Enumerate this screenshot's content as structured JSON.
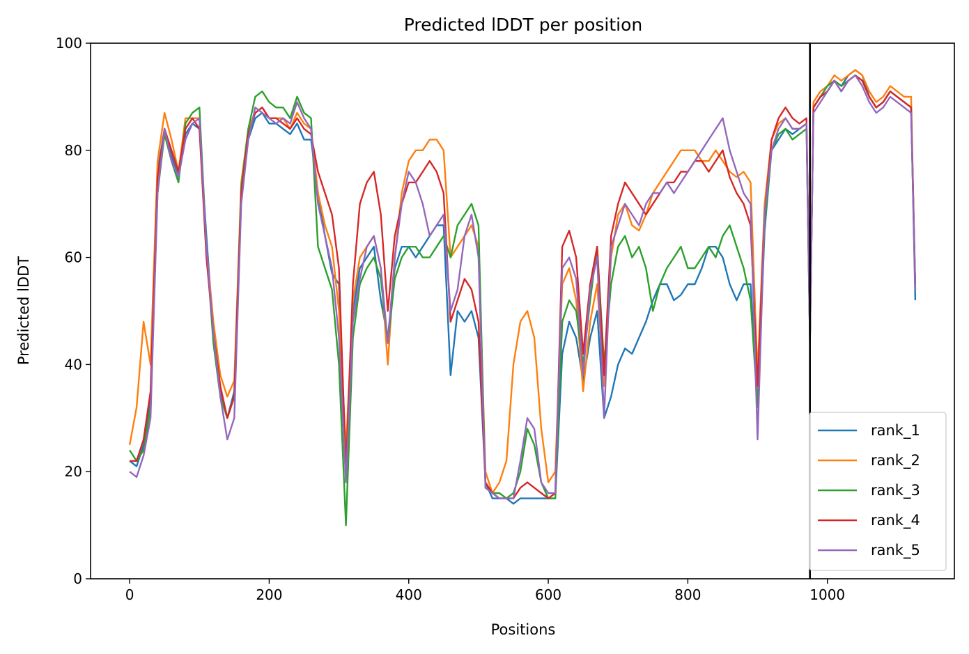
{
  "chart_data": {
    "type": "line",
    "title": "Predicted lDDT per position",
    "xlabel": "Positions",
    "ylabel": "Predicted lDDT",
    "xlim": [
      -56,
      1182
    ],
    "ylim": [
      0,
      100
    ],
    "xticks": [
      0,
      200,
      400,
      600,
      800,
      1000
    ],
    "yticks": [
      0,
      20,
      40,
      60,
      80,
      100
    ],
    "grid": false,
    "legend_position": "lower right",
    "vline": {
      "x": 975,
      "color": "#000000"
    },
    "series": [
      {
        "name": "rank_1",
        "color": "#1f77b4",
        "x": [
          0,
          10,
          20,
          30,
          40,
          50,
          60,
          70,
          80,
          90,
          100,
          110,
          120,
          130,
          140,
          150,
          160,
          170,
          180,
          190,
          200,
          210,
          220,
          230,
          240,
          250,
          260,
          270,
          280,
          290,
          300,
          310,
          320,
          330,
          340,
          350,
          360,
          370,
          380,
          390,
          400,
          410,
          420,
          430,
          440,
          450,
          460,
          470,
          480,
          490,
          500,
          510,
          520,
          530,
          540,
          550,
          560,
          570,
          580,
          590,
          600,
          610,
          620,
          630,
          640,
          650,
          660,
          670,
          680,
          690,
          700,
          710,
          720,
          730,
          740,
          750,
          760,
          770,
          780,
          790,
          800,
          810,
          820,
          830,
          840,
          850,
          860,
          870,
          880,
          890,
          900,
          910,
          920,
          930,
          940,
          950,
          960,
          970,
          975,
          980,
          990,
          1000,
          1010,
          1020,
          1030,
          1040,
          1050,
          1060,
          1070,
          1080,
          1090,
          1100,
          1110,
          1120,
          1126
        ],
        "y": [
          22,
          21,
          25,
          34,
          76,
          84,
          79,
          75,
          83,
          85,
          84,
          64,
          46,
          35,
          30,
          35,
          72,
          82,
          86,
          87,
          85,
          85,
          84,
          83,
          85,
          82,
          82,
          72,
          64,
          57,
          55,
          22,
          50,
          58,
          60,
          62,
          52,
          45,
          58,
          62,
          62,
          60,
          62,
          64,
          66,
          66,
          38,
          50,
          48,
          50,
          45,
          18,
          15,
          15,
          15,
          14,
          15,
          15,
          15,
          15,
          15,
          15,
          42,
          48,
          45,
          37,
          45,
          50,
          30,
          34,
          40,
          43,
          42,
          45,
          48,
          52,
          55,
          55,
          52,
          53,
          55,
          55,
          58,
          62,
          62,
          60,
          55,
          52,
          55,
          55,
          32,
          65,
          80,
          82,
          84,
          83,
          84,
          85,
          44,
          88,
          90,
          91,
          93,
          92,
          94,
          95,
          94,
          90,
          88,
          89,
          91,
          90,
          89,
          88,
          52
        ]
      },
      {
        "name": "rank_2",
        "color": "#ff7f0e",
        "x": [
          0,
          10,
          20,
          30,
          40,
          50,
          60,
          70,
          80,
          90,
          100,
          110,
          120,
          130,
          140,
          150,
          160,
          170,
          180,
          190,
          200,
          210,
          220,
          230,
          240,
          250,
          260,
          270,
          280,
          290,
          300,
          310,
          320,
          330,
          340,
          350,
          360,
          370,
          380,
          390,
          400,
          410,
          420,
          430,
          440,
          450,
          460,
          470,
          480,
          490,
          500,
          510,
          520,
          530,
          540,
          550,
          560,
          570,
          580,
          590,
          600,
          610,
          620,
          630,
          640,
          650,
          660,
          670,
          680,
          690,
          700,
          710,
          720,
          730,
          740,
          750,
          760,
          770,
          780,
          790,
          800,
          810,
          820,
          830,
          840,
          850,
          860,
          870,
          880,
          890,
          900,
          910,
          920,
          930,
          940,
          950,
          960,
          970,
          975,
          980,
          990,
          1000,
          1010,
          1020,
          1030,
          1040,
          1050,
          1060,
          1070,
          1080,
          1090,
          1100,
          1110,
          1120,
          1126
        ],
        "y": [
          25,
          32,
          48,
          40,
          78,
          87,
          82,
          76,
          86,
          86,
          86,
          62,
          48,
          38,
          34,
          37,
          74,
          84,
          87,
          88,
          86,
          86,
          86,
          84,
          87,
          85,
          84,
          72,
          66,
          62,
          50,
          24,
          52,
          60,
          62,
          64,
          58,
          40,
          60,
          72,
          78,
          80,
          80,
          82,
          82,
          80,
          60,
          62,
          64,
          66,
          62,
          20,
          16,
          18,
          22,
          40,
          48,
          50,
          45,
          28,
          18,
          20,
          55,
          58,
          52,
          35,
          48,
          55,
          36,
          60,
          68,
          70,
          66,
          65,
          68,
          72,
          74,
          76,
          78,
          80,
          80,
          80,
          78,
          78,
          80,
          78,
          76,
          75,
          76,
          74,
          38,
          70,
          82,
          85,
          86,
          84,
          84,
          85,
          45,
          89,
          91,
          92,
          94,
          93,
          94,
          95,
          94,
          91,
          89,
          90,
          92,
          91,
          90,
          90,
          54
        ]
      },
      {
        "name": "rank_3",
        "color": "#2ca02c",
        "x": [
          0,
          10,
          20,
          30,
          40,
          50,
          60,
          70,
          80,
          90,
          100,
          110,
          120,
          130,
          140,
          150,
          160,
          170,
          180,
          190,
          200,
          210,
          220,
          230,
          240,
          250,
          260,
          270,
          280,
          290,
          300,
          310,
          320,
          330,
          340,
          350,
          360,
          370,
          380,
          390,
          400,
          410,
          420,
          430,
          440,
          450,
          460,
          470,
          480,
          490,
          500,
          510,
          520,
          530,
          540,
          550,
          560,
          570,
          580,
          590,
          600,
          610,
          620,
          630,
          640,
          650,
          660,
          670,
          680,
          690,
          700,
          710,
          720,
          730,
          740,
          750,
          760,
          770,
          780,
          790,
          800,
          810,
          820,
          830,
          840,
          850,
          860,
          870,
          880,
          890,
          900,
          910,
          920,
          930,
          940,
          950,
          960,
          970,
          975,
          980,
          990,
          1000,
          1010,
          1020,
          1030,
          1040,
          1050,
          1060,
          1070,
          1080,
          1090,
          1100,
          1110,
          1120,
          1126
        ],
        "y": [
          24,
          22,
          24,
          32,
          72,
          83,
          78,
          74,
          85,
          87,
          88,
          62,
          44,
          34,
          30,
          34,
          73,
          84,
          90,
          91,
          89,
          88,
          88,
          86,
          90,
          87,
          86,
          62,
          58,
          54,
          40,
          10,
          45,
          55,
          58,
          60,
          56,
          44,
          56,
          60,
          62,
          62,
          60,
          60,
          62,
          64,
          60,
          66,
          68,
          70,
          66,
          17,
          16,
          16,
          15,
          16,
          20,
          28,
          25,
          18,
          15,
          15,
          48,
          52,
          50,
          40,
          52,
          62,
          40,
          55,
          62,
          64,
          60,
          62,
          58,
          50,
          55,
          58,
          60,
          62,
          58,
          58,
          60,
          62,
          60,
          64,
          66,
          62,
          58,
          52,
          32,
          66,
          80,
          83,
          84,
          82,
          83,
          84,
          44,
          88,
          90,
          92,
          93,
          92,
          93,
          94,
          93,
          90,
          88,
          89,
          91,
          90,
          89,
          88,
          54
        ]
      },
      {
        "name": "rank_4",
        "color": "#d62728",
        "x": [
          0,
          10,
          20,
          30,
          40,
          50,
          60,
          70,
          80,
          90,
          100,
          110,
          120,
          130,
          140,
          150,
          160,
          170,
          180,
          190,
          200,
          210,
          220,
          230,
          240,
          250,
          260,
          270,
          280,
          290,
          300,
          310,
          320,
          330,
          340,
          350,
          360,
          370,
          380,
          390,
          400,
          410,
          420,
          430,
          440,
          450,
          460,
          470,
          480,
          490,
          500,
          510,
          520,
          530,
          540,
          550,
          560,
          570,
          580,
          590,
          600,
          610,
          620,
          630,
          640,
          650,
          660,
          670,
          680,
          690,
          700,
          710,
          720,
          730,
          740,
          750,
          760,
          770,
          780,
          790,
          800,
          810,
          820,
          830,
          840,
          850,
          860,
          870,
          880,
          890,
          900,
          910,
          920,
          930,
          940,
          950,
          960,
          970,
          975,
          980,
          990,
          1000,
          1010,
          1020,
          1030,
          1040,
          1050,
          1060,
          1070,
          1080,
          1090,
          1100,
          1110,
          1120,
          1126
        ],
        "y": [
          22,
          22,
          26,
          35,
          75,
          84,
          80,
          76,
          84,
          86,
          84,
          60,
          46,
          36,
          30,
          34,
          72,
          83,
          87,
          88,
          86,
          86,
          85,
          84,
          86,
          84,
          83,
          76,
          72,
          68,
          58,
          20,
          55,
          70,
          74,
          76,
          68,
          50,
          64,
          70,
          74,
          74,
          76,
          78,
          76,
          72,
          48,
          52,
          56,
          54,
          48,
          18,
          16,
          15,
          15,
          15,
          17,
          18,
          17,
          16,
          15,
          16,
          62,
          65,
          60,
          42,
          55,
          62,
          38,
          64,
          70,
          74,
          72,
          70,
          68,
          70,
          72,
          74,
          74,
          76,
          76,
          78,
          78,
          76,
          78,
          80,
          75,
          72,
          70,
          66,
          36,
          68,
          82,
          86,
          88,
          86,
          85,
          86,
          45,
          88,
          90,
          91,
          93,
          91,
          93,
          94,
          93,
          90,
          88,
          89,
          91,
          90,
          89,
          88,
          55
        ]
      },
      {
        "name": "rank_5",
        "color": "#9467bd",
        "x": [
          0,
          10,
          20,
          30,
          40,
          50,
          60,
          70,
          80,
          90,
          100,
          110,
          120,
          130,
          140,
          150,
          160,
          170,
          180,
          190,
          200,
          210,
          220,
          230,
          240,
          250,
          260,
          270,
          280,
          290,
          300,
          310,
          320,
          330,
          340,
          350,
          360,
          370,
          380,
          390,
          400,
          410,
          420,
          430,
          440,
          450,
          460,
          470,
          480,
          490,
          500,
          510,
          520,
          530,
          540,
          550,
          560,
          570,
          580,
          590,
          600,
          610,
          620,
          630,
          640,
          650,
          660,
          670,
          680,
          690,
          700,
          710,
          720,
          730,
          740,
          750,
          760,
          770,
          780,
          790,
          800,
          810,
          820,
          830,
          840,
          850,
          860,
          870,
          880,
          890,
          900,
          910,
          920,
          930,
          940,
          950,
          960,
          970,
          975,
          980,
          990,
          1000,
          1010,
          1020,
          1030,
          1040,
          1050,
          1060,
          1070,
          1080,
          1090,
          1100,
          1110,
          1120,
          1126
        ],
        "y": [
          20,
          19,
          23,
          30,
          72,
          84,
          78,
          75,
          82,
          85,
          86,
          62,
          46,
          34,
          26,
          30,
          70,
          82,
          88,
          87,
          86,
          85,
          86,
          85,
          89,
          86,
          84,
          70,
          64,
          58,
          45,
          18,
          48,
          56,
          62,
          64,
          58,
          44,
          60,
          70,
          76,
          74,
          70,
          64,
          66,
          68,
          50,
          54,
          64,
          68,
          60,
          17,
          16,
          15,
          15,
          15,
          22,
          30,
          28,
          18,
          16,
          16,
          58,
          60,
          56,
          38,
          54,
          60,
          30,
          62,
          66,
          70,
          68,
          66,
          70,
          72,
          72,
          74,
          72,
          74,
          76,
          78,
          80,
          82,
          84,
          86,
          80,
          76,
          72,
          70,
          26,
          68,
          80,
          84,
          86,
          84,
          84,
          85,
          45,
          87,
          89,
          91,
          93,
          91,
          93,
          94,
          92,
          89,
          87,
          88,
          90,
          89,
          88,
          87,
          54
        ]
      }
    ]
  }
}
